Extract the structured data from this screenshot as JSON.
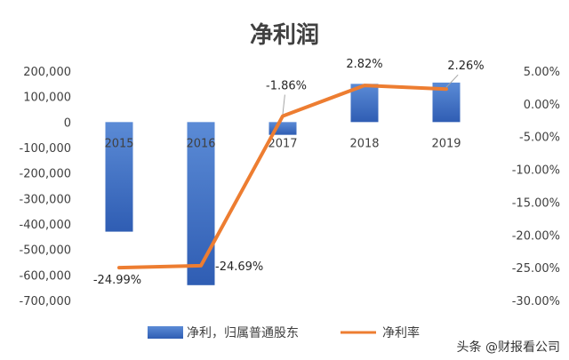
{
  "chart_data": {
    "type": "bar",
    "title": "净利润",
    "categories": [
      "2015",
      "2016",
      "2017",
      "2018",
      "2019"
    ],
    "series": [
      {
        "name": "净利，归属普通股东",
        "type": "bar",
        "axis": "left",
        "color": "#4472C4",
        "values": [
          -430000,
          -640000,
          -50000,
          150000,
          155000
        ]
      },
      {
        "name": "净利率",
        "type": "line",
        "axis": "right",
        "color": "#ED7D31",
        "values": [
          -24.99,
          -24.69,
          -1.86,
          2.82,
          2.26
        ],
        "data_labels": [
          "-24.99%",
          "-24.69%",
          "-1.86%",
          "2.82%",
          "2.26%"
        ]
      }
    ],
    "y_left": {
      "range": [
        -700000,
        200000
      ],
      "ticks": [
        200000,
        100000,
        0,
        -100000,
        -200000,
        -300000,
        -400000,
        -500000,
        -600000,
        -700000
      ],
      "tick_labels": [
        "200,000",
        "100,000",
        "0",
        "-100,000",
        "-200,000",
        "-300,000",
        "-400,000",
        "-500,000",
        "-600,000",
        "-700,000"
      ]
    },
    "y_right": {
      "range": [
        -30,
        5
      ],
      "ticks": [
        5,
        0,
        -5,
        -10,
        -15,
        -20,
        -25,
        -30
      ],
      "tick_labels": [
        "5.00%",
        "0.00%",
        "-5.00%",
        "-10.00%",
        "-15.00%",
        "-20.00%",
        "-25.00%",
        "-30.00%"
      ]
    },
    "grid": false,
    "legend_position": "bottom"
  },
  "watermark": "头条 @财报看公司"
}
